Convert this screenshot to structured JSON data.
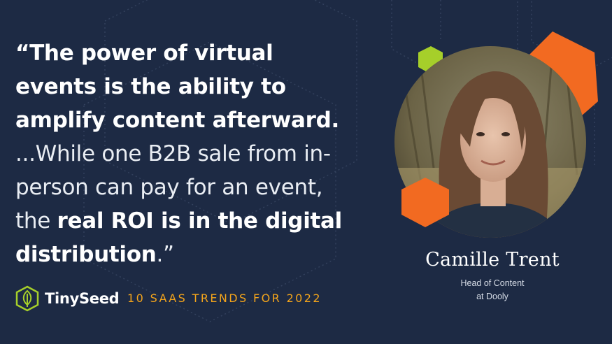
{
  "quote": {
    "open_mark": "“",
    "bold1": "The power of virtual events is the ability to amplify content afterward.",
    "light1": " ...While one B2B sale from in-person can pay for an event, the ",
    "bold2": "real ROI is in the digital distribution",
    "close": ".”"
  },
  "brand": {
    "name": "TinySeed",
    "tagline": "10 SAAS TRENDS FOR 2022"
  },
  "speaker": {
    "name": "Camille Trent",
    "title_line1": "Head of Content",
    "title_line2": "at Dooly"
  },
  "colors": {
    "background": "#1d2a44",
    "accent_orange": "#f26a21",
    "accent_green": "#a6cf2a",
    "accent_gold": "#f3a41b"
  }
}
